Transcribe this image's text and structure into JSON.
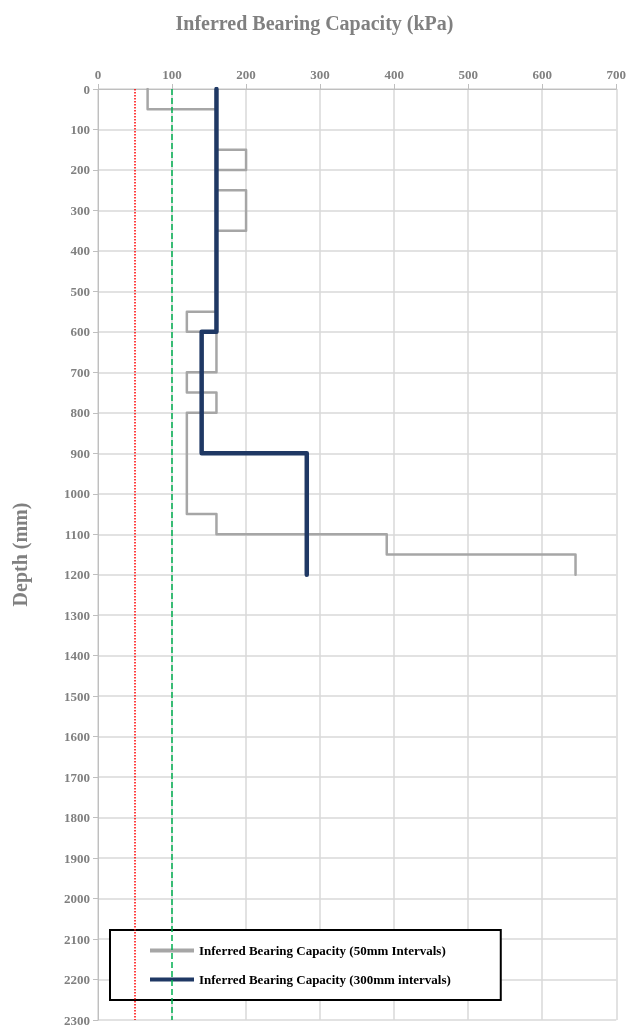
{
  "chart_data": {
    "type": "line",
    "xlabel": "Inferred Bearing Capacity (kPa)",
    "ylabel": "Depth (mm)",
    "xlim": [
      0,
      700
    ],
    "xticks": [
      0,
      100,
      200,
      300,
      400,
      500,
      600,
      700
    ],
    "ylim": [
      2300,
      0
    ],
    "yticks": [
      0,
      100,
      200,
      300,
      400,
      500,
      600,
      700,
      800,
      900,
      1000,
      1100,
      1200,
      1300,
      1400,
      1500,
      1600,
      1700,
      1800,
      1900,
      2000,
      2100,
      2200,
      2300
    ],
    "series": [
      {
        "name": "Inferred Bearing Capacity (50mm Intervals)",
        "color": "#a6a6a6",
        "x": [
          67,
          67,
          160,
          160,
          200,
          200,
          160,
          160,
          200,
          200,
          160,
          160,
          120,
          120,
          160,
          160,
          120,
          120,
          160,
          160,
          120,
          120,
          160,
          160,
          390,
          390,
          645,
          645
        ],
        "values": [
          0,
          50,
          50,
          150,
          150,
          200,
          200,
          250,
          250,
          350,
          350,
          550,
          550,
          600,
          600,
          700,
          700,
          750,
          750,
          800,
          800,
          1050,
          1050,
          1100,
          1100,
          1150,
          1150,
          1200
        ]
      },
      {
        "name": "Inferred Bearing Capacity (300mm intervals)",
        "color": "#1f3864",
        "x": [
          160,
          160,
          140,
          140,
          282,
          282
        ],
        "values": [
          0,
          600,
          600,
          900,
          900,
          1200
        ]
      }
    ],
    "ref_lines": [
      {
        "axis": "x",
        "value": 50,
        "color": "#ff0000",
        "line_style": "dotted"
      },
      {
        "axis": "x",
        "value": 100,
        "color": "#00b050",
        "line_style": "dashed"
      }
    ],
    "grid": true,
    "legend": "bottom",
    "marker": "none",
    "line_style": "solid"
  }
}
